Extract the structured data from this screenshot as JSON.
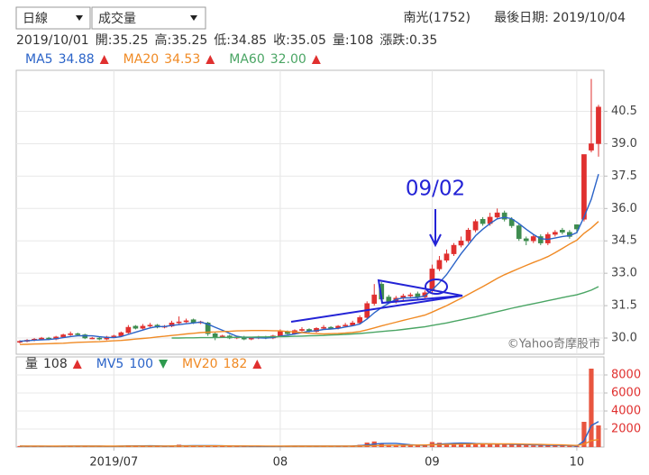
{
  "toolbar": {
    "period": "日線",
    "indicator": "成交量",
    "stock": "南光(1752)",
    "last_date": "最後日期: 2019/10/04"
  },
  "quote": [
    "2019/10/01",
    "開:35.25",
    "高:35.25",
    "低:34.85",
    "收:35.05",
    "量:108",
    "漲跌:0.35"
  ],
  "trend_colors": {
    "up": "#e0302f",
    "down": "#2e9a4e"
  },
  "chart_data": [
    {
      "type": "candlestick",
      "up_color": "#e0302f",
      "down_color": "#3e8c4f",
      "open": [
        29.8,
        29.85,
        29.9,
        29.95,
        30.0,
        29.95,
        30.05,
        30.15,
        30.2,
        30.15,
        30.0,
        30.0,
        29.95,
        30.05,
        30.1,
        30.25,
        30.55,
        30.45,
        30.55,
        30.6,
        30.5,
        30.55,
        30.7,
        30.75,
        30.85,
        30.7,
        30.7,
        30.2,
        30.05,
        30.1,
        30.0,
        30.05,
        29.95,
        30.0,
        30.05,
        30.0,
        30.1,
        30.3,
        30.2,
        30.35,
        30.4,
        30.3,
        30.45,
        30.5,
        30.45,
        30.55,
        30.6,
        30.7,
        30.95,
        31.6,
        32.5,
        31.9,
        31.7,
        31.85,
        31.95,
        32.05,
        31.9,
        32.2,
        33.2,
        33.6,
        33.9,
        34.3,
        34.5,
        35.0,
        35.5,
        35.3,
        35.6,
        35.8,
        35.5,
        35.2,
        34.6,
        34.5,
        34.7,
        34.4,
        34.8,
        35.0,
        34.9,
        35.25,
        35.5,
        38.7,
        39.0
      ],
      "high": [
        29.9,
        29.95,
        30.0,
        30.05,
        30.05,
        30.1,
        30.2,
        30.3,
        30.25,
        30.2,
        30.05,
        30.05,
        30.1,
        30.15,
        30.3,
        30.6,
        30.6,
        30.65,
        30.7,
        30.65,
        30.6,
        30.8,
        31.0,
        30.9,
        30.9,
        30.8,
        30.75,
        30.25,
        30.15,
        30.15,
        30.1,
        30.1,
        30.05,
        30.1,
        30.1,
        30.15,
        30.4,
        30.35,
        30.4,
        30.5,
        30.45,
        30.5,
        30.6,
        30.55,
        30.6,
        30.7,
        30.8,
        31.05,
        31.7,
        32.5,
        32.6,
        32.0,
        31.95,
        32.05,
        32.1,
        32.15,
        32.2,
        33.4,
        33.8,
        34.1,
        34.4,
        34.7,
        35.1,
        35.5,
        35.6,
        35.8,
        36.0,
        35.9,
        35.6,
        35.3,
        34.7,
        34.8,
        34.8,
        34.9,
        35.0,
        35.1,
        35.0,
        35.25,
        38.5,
        42.0,
        40.8
      ],
      "low": [
        29.75,
        29.8,
        29.85,
        29.9,
        29.9,
        29.9,
        30.0,
        30.1,
        30.1,
        29.95,
        29.95,
        29.9,
        29.9,
        30.0,
        30.05,
        30.2,
        30.4,
        30.4,
        30.5,
        30.45,
        30.45,
        30.5,
        30.65,
        30.7,
        30.65,
        30.65,
        30.1,
        29.9,
        30.0,
        29.95,
        29.95,
        29.9,
        29.9,
        29.95,
        29.95,
        29.95,
        30.05,
        30.15,
        30.15,
        30.3,
        30.25,
        30.25,
        30.4,
        30.4,
        30.4,
        30.5,
        30.55,
        30.65,
        30.9,
        31.5,
        31.7,
        31.6,
        31.6,
        31.75,
        31.85,
        31.8,
        31.85,
        32.1,
        33.1,
        33.5,
        33.8,
        34.2,
        34.4,
        34.9,
        35.2,
        35.2,
        35.5,
        35.4,
        35.1,
        34.5,
        34.3,
        34.4,
        34.3,
        34.3,
        34.7,
        34.8,
        34.6,
        34.85,
        35.4,
        38.6,
        38.4
      ],
      "close": [
        29.85,
        29.9,
        29.95,
        30.0,
        29.95,
        30.05,
        30.15,
        30.2,
        30.15,
        30.0,
        30.0,
        29.95,
        30.05,
        30.1,
        30.25,
        30.5,
        30.45,
        30.55,
        30.6,
        30.5,
        30.55,
        30.7,
        30.75,
        30.8,
        30.7,
        30.75,
        30.2,
        30.05,
        30.1,
        30.0,
        30.05,
        29.95,
        30.0,
        30.05,
        30.0,
        30.1,
        30.3,
        30.2,
        30.35,
        30.4,
        30.3,
        30.45,
        30.5,
        30.45,
        30.55,
        30.6,
        30.7,
        30.95,
        31.6,
        32.0,
        31.8,
        31.7,
        31.85,
        31.95,
        32.0,
        31.9,
        32.1,
        33.2,
        33.6,
        33.9,
        34.3,
        34.5,
        35.0,
        35.4,
        35.3,
        35.6,
        35.8,
        35.5,
        35.2,
        34.6,
        34.5,
        34.7,
        34.4,
        34.8,
        34.9,
        34.9,
        34.7,
        35.05,
        38.5,
        39.0,
        40.7
      ],
      "series": [
        {
          "name": "MA5",
          "color": "#2a63c8",
          "legend_value": 34.88,
          "trend": "up",
          "values": [
            29.85,
            29.87,
            29.9,
            29.92,
            29.93,
            29.97,
            30.02,
            30.07,
            30.1,
            30.11,
            30.1,
            30.06,
            30.03,
            30.02,
            30.07,
            30.17,
            30.27,
            30.37,
            30.47,
            30.53,
            30.53,
            30.58,
            30.62,
            30.66,
            30.7,
            30.74,
            30.64,
            30.5,
            30.36,
            30.22,
            30.08,
            30.03,
            30.02,
            30.01,
            30.0,
            30.02,
            30.09,
            30.13,
            30.19,
            30.25,
            30.31,
            30.34,
            30.4,
            30.42,
            30.45,
            30.51,
            30.57,
            30.65,
            30.88,
            31.17,
            31.41,
            31.61,
            31.79,
            31.86,
            31.86,
            31.88,
            31.95,
            32.23,
            32.56,
            32.94,
            33.42,
            33.9,
            34.32,
            34.74,
            35.04,
            35.3,
            35.52,
            35.59,
            35.53,
            35.3,
            35.04,
            34.8,
            34.6,
            34.57,
            34.63,
            34.7,
            34.74,
            34.88,
            35.61,
            36.43,
            37.59
          ]
        },
        {
          "name": "MA20",
          "color": "#f08a24",
          "legend_value": 34.53,
          "trend": "up",
          "values": [
            29.7,
            29.71,
            29.72,
            29.73,
            29.74,
            29.75,
            29.76,
            29.78,
            29.8,
            29.81,
            29.82,
            29.83,
            29.85,
            29.87,
            29.89,
            29.92,
            29.95,
            29.98,
            30.01,
            30.05,
            30.08,
            30.12,
            30.15,
            30.19,
            30.22,
            30.25,
            30.27,
            30.28,
            30.3,
            30.31,
            30.33,
            30.34,
            30.35,
            30.35,
            30.35,
            30.34,
            30.33,
            30.3,
            30.28,
            30.25,
            30.22,
            30.2,
            30.19,
            30.2,
            30.21,
            30.23,
            30.26,
            30.3,
            30.38,
            30.47,
            30.56,
            30.65,
            30.73,
            30.82,
            30.9,
            30.98,
            31.06,
            31.2,
            31.35,
            31.5,
            31.67,
            31.84,
            32.02,
            32.2,
            32.38,
            32.57,
            32.76,
            32.93,
            33.08,
            33.22,
            33.36,
            33.5,
            33.63,
            33.77,
            33.95,
            34.15,
            34.35,
            34.53,
            34.85,
            35.1,
            35.4
          ]
        },
        {
          "name": "MA60",
          "color": "#4aa564",
          "legend_value": {
            "value": 32,
            "label": "32.00"
          },
          "trend": "up",
          "values": [
            null,
            null,
            null,
            null,
            null,
            null,
            null,
            null,
            null,
            null,
            null,
            null,
            null,
            null,
            null,
            null,
            null,
            null,
            null,
            null,
            null,
            30.0,
            30.0,
            30.01,
            30.01,
            30.02,
            30.02,
            30.02,
            30.03,
            30.03,
            30.03,
            30.04,
            30.04,
            30.05,
            30.05,
            30.06,
            30.06,
            30.07,
            30.08,
            30.09,
            30.1,
            30.11,
            30.12,
            30.14,
            30.15,
            30.17,
            30.19,
            30.21,
            30.24,
            30.27,
            30.3,
            30.33,
            30.36,
            30.4,
            30.44,
            30.48,
            30.52,
            30.58,
            30.64,
            30.7,
            30.77,
            30.84,
            30.91,
            30.98,
            31.06,
            31.14,
            31.22,
            31.3,
            31.38,
            31.45,
            31.52,
            31.59,
            31.66,
            31.73,
            31.8,
            31.87,
            31.94,
            32.0,
            32.1,
            32.22,
            32.38
          ]
        }
      ],
      "ylim": [
        29.25,
        42.4
      ],
      "yticks": [
        {
          "value": 30,
          "label": "30.0"
        },
        31.5,
        {
          "value": 33,
          "label": "33.0"
        },
        34.5,
        {
          "value": 36,
          "label": "36.0"
        },
        37.5,
        {
          "value": 39,
          "label": "39.0"
        },
        40.5
      ],
      "grid": true,
      "tick_color": "#444",
      "watermark": "©Yahoo奇摩股市",
      "annotation": "09/02"
    },
    {
      "type": "bar",
      "name": "量",
      "legend_value": 108,
      "trend": "up",
      "color": "#e8553f",
      "categories": [
        null,
        null,
        null,
        null,
        null,
        null,
        null,
        null,
        null,
        null,
        null,
        null,
        null,
        "2019/07",
        null,
        null,
        null,
        null,
        null,
        null,
        null,
        null,
        null,
        null,
        null,
        null,
        null,
        null,
        null,
        null,
        null,
        null,
        null,
        null,
        null,
        null,
        "08",
        null,
        null,
        null,
        null,
        null,
        null,
        null,
        null,
        null,
        null,
        null,
        null,
        null,
        null,
        null,
        null,
        null,
        null,
        null,
        null,
        "09",
        null,
        null,
        null,
        null,
        null,
        null,
        null,
        null,
        null,
        null,
        null,
        null,
        null,
        null,
        null,
        null,
        null,
        null,
        null,
        "10",
        null,
        null,
        null
      ],
      "values": [
        120,
        80,
        60,
        90,
        70,
        100,
        150,
        130,
        90,
        80,
        60,
        70,
        90,
        110,
        150,
        200,
        120,
        100,
        130,
        90,
        80,
        140,
        260,
        150,
        120,
        90,
        180,
        150,
        100,
        80,
        70,
        90,
        60,
        80,
        70,
        100,
        140,
        90,
        110,
        120,
        80,
        100,
        130,
        90,
        110,
        120,
        160,
        250,
        500,
        620,
        400,
        260,
        200,
        180,
        210,
        170,
        230,
        560,
        480,
        420,
        390,
        350,
        420,
        380,
        300,
        330,
        310,
        280,
        260,
        300,
        220,
        180,
        200,
        210,
        190,
        170,
        150,
        108,
        2800,
        8700,
        2400
      ],
      "series": [
        {
          "name": "MV5",
          "color": "#2a63c8",
          "legend_value": 100,
          "trend": "down",
          "values": [
            100,
            95,
            90,
            85,
            84,
            84,
            94,
            110,
            108,
            106,
            102,
            96,
            78,
            82,
            96,
            124,
            134,
            134,
            140,
            128,
            104,
            108,
            140,
            144,
            150,
            148,
            160,
            152,
            140,
            120,
            114,
            98,
            80,
            78,
            74,
            80,
            80,
            88,
            100,
            112,
            108,
            100,
            106,
            106,
            106,
            106,
            122,
            146,
            228,
            330,
            386,
            406,
            406,
            332,
            254,
            214,
            198,
            270,
            330,
            372,
            416,
            444,
            432,
            392,
            374,
            356,
            328,
            320,
            296,
            298,
            268,
            248,
            232,
            210,
            200,
            192,
            184,
            100,
            684,
            2390,
            2830
          ]
        },
        {
          "name": "MV20",
          "color": "#f08a24",
          "legend_value": 182,
          "trend": "up",
          "values": [
            110,
            110,
            108,
            106,
            105,
            104,
            106,
            108,
            108,
            106,
            104,
            102,
            100,
            101,
            103,
            106,
            110,
            112,
            114,
            114,
            114,
            116,
            122,
            124,
            125,
            124,
            126,
            128,
            126,
            124,
            122,
            120,
            118,
            116,
            112,
            110,
            108,
            104,
            102,
            100,
            100,
            100,
            102,
            104,
            106,
            108,
            112,
            118,
            136,
            162,
            180,
            190,
            198,
            206,
            214,
            222,
            230,
            254,
            274,
            292,
            306,
            318,
            330,
            340,
            348,
            354,
            356,
            352,
            346,
            338,
            322,
            306,
            290,
            274,
            258,
            240,
            214,
            182,
            310,
            720,
            830
          ]
        }
      ],
      "ylim": [
        0,
        10000
      ],
      "yticks": [
        2000,
        4000,
        6000,
        8000
      ],
      "grid": true,
      "tick_color": "#e0302f"
    }
  ]
}
